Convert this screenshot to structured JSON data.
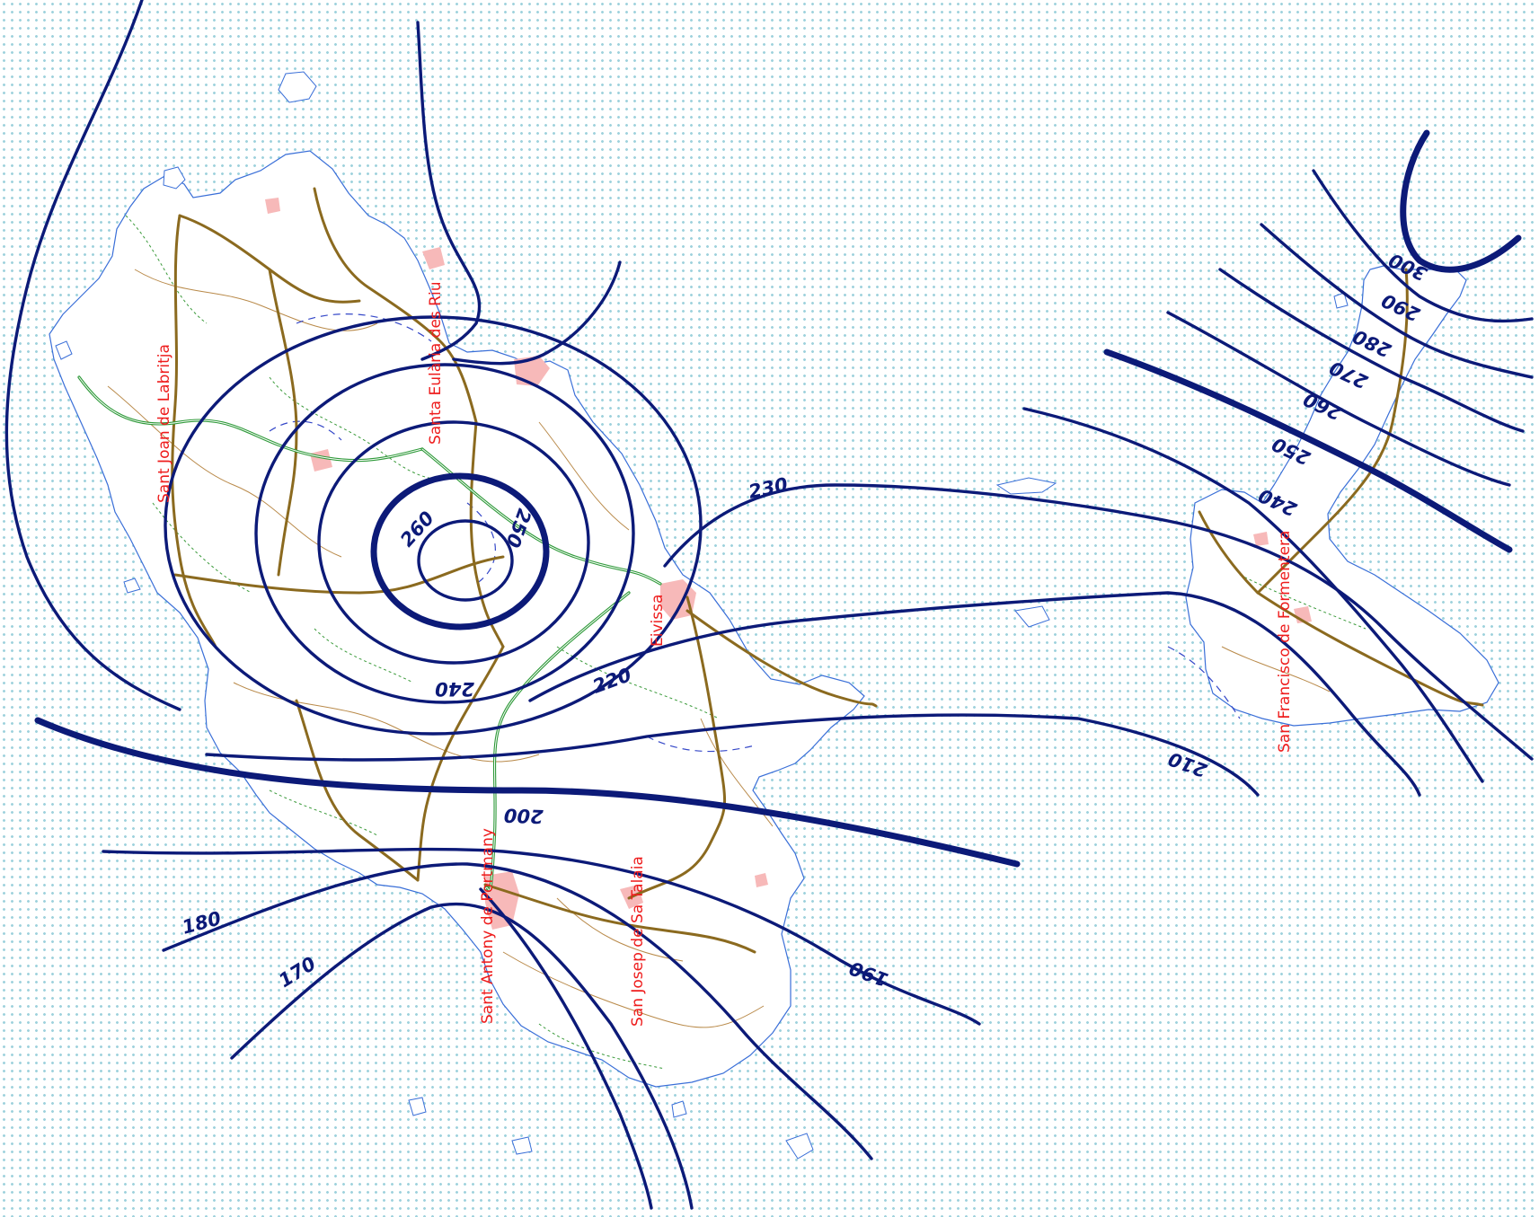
{
  "colors": {
    "sea_dots": "#9fd2dd",
    "land": "#ffffff",
    "coast": "#3a6fd8",
    "isoline": "#0c1a78",
    "main_road": "#8b6a1f",
    "highway": "#2f9a3a",
    "urban": "#f7b9b9",
    "place_label": "#ee1c1c"
  },
  "isolines": {
    "labels": [
      "170",
      "180",
      "190",
      "200",
      "210",
      "220",
      "230",
      "240",
      "250",
      "260",
      "240",
      "250",
      "260",
      "270",
      "280",
      "290",
      "300"
    ]
  },
  "places": [
    "Sant Joan de Labritja",
    "Santa Eulària des Riu",
    "Eivissa",
    "Sant Antony de Portmany",
    "San Josep de Sa Talaia",
    "San Francisco de Formentera"
  ]
}
